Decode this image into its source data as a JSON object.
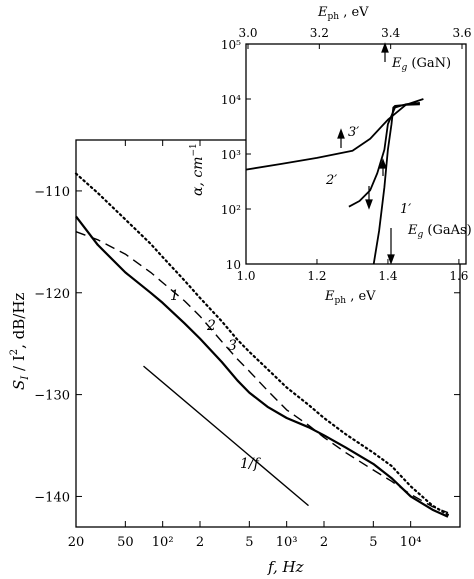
{
  "chart_data": [
    {
      "type": "line",
      "x_scale": "log",
      "xlabel": "f, Hz",
      "ylabel": "S_I / I^2, dB/Hz",
      "xlim": [
        20,
        25000
      ],
      "ylim": [
        -143,
        -105
      ],
      "x_ticks": [
        20,
        50,
        100,
        200,
        500,
        1000,
        2000,
        5000,
        10000
      ],
      "x_tick_labels": [
        "20",
        "50",
        "10²",
        "2",
        "5",
        "10³",
        "2",
        "5",
        "10⁴"
      ],
      "y_ticks": [
        -110,
        -120,
        -130,
        -140
      ],
      "y_tick_labels": [
        "−110",
        "−120",
        "−130",
        "−140"
      ],
      "series": [
        {
          "name": "1",
          "style": "solid-thick",
          "x": [
            20,
            30,
            50,
            80,
            100,
            150,
            200,
            300,
            400,
            500,
            700,
            1000,
            1500,
            2000,
            3000,
            5000,
            7000,
            10000,
            15000,
            20000
          ],
          "y": [
            -112.5,
            -115.3,
            -118.0,
            -120.0,
            -121.0,
            -123.0,
            -124.5,
            -126.8,
            -128.6,
            -129.8,
            -131.2,
            -132.3,
            -133.2,
            -134.0,
            -135.2,
            -136.8,
            -138.2,
            -140.0,
            -141.3,
            -142.0
          ]
        },
        {
          "name": "2",
          "style": "dashed",
          "x": [
            20,
            30,
            50,
            80,
            100,
            150,
            200,
            300,
            400,
            500,
            700,
            1000,
            1500,
            2000,
            3000,
            5000,
            7000,
            10000,
            15000,
            20000
          ],
          "y": [
            -114.0,
            -114.8,
            -116.2,
            -118.0,
            -119.0,
            -120.8,
            -122.3,
            -124.8,
            -126.5,
            -127.7,
            -129.6,
            -131.5,
            -133.0,
            -134.2,
            -135.7,
            -137.4,
            -138.5,
            -139.8,
            -141.0,
            -141.6
          ]
        },
        {
          "name": "3",
          "style": "dotted",
          "x": [
            20,
            30,
            50,
            80,
            100,
            150,
            200,
            300,
            400,
            500,
            700,
            1000,
            1500,
            2000,
            3000,
            5000,
            7000,
            10000,
            15000,
            20000
          ],
          "y": [
            -108.3,
            -110.2,
            -112.8,
            -115.2,
            -116.5,
            -118.8,
            -120.5,
            -122.8,
            -124.6,
            -125.8,
            -127.5,
            -129.3,
            -131.0,
            -132.3,
            -133.9,
            -135.7,
            -137.0,
            -139.0,
            -140.9,
            -141.8
          ]
        },
        {
          "name": "1/f",
          "style": "solid-thin",
          "x": [
            70,
            1500
          ],
          "y": [
            -127.2,
            -140.9
          ]
        }
      ],
      "annotations": [
        "1",
        "2",
        "3",
        "1/f"
      ]
    },
    {
      "type": "line",
      "y_scale": "log",
      "xlabel": "E_ph, eV",
      "top_xlabel": "E_ph, eV",
      "ylabel": "α, cm⁻¹",
      "xlim": [
        1.0,
        1.62
      ],
      "ylim": [
        10,
        100000
      ],
      "x_ticks": [
        1.0,
        1.2,
        1.4,
        1.6
      ],
      "x_tick_labels": [
        "1.0",
        "1.2",
        "1.4",
        "1.6"
      ],
      "top_x_ticks": [
        3.0,
        3.2,
        3.4,
        3.6
      ],
      "top_x_tick_labels": [
        "3.0",
        "3.2",
        "3.4",
        "3.6"
      ],
      "y_ticks": [
        10,
        100,
        1000,
        10000,
        100000
      ],
      "y_tick_labels": [
        "10",
        "10²",
        "10³",
        "10⁴",
        "10⁵"
      ],
      "series": [
        {
          "name": "3′",
          "x": [
            1.0,
            1.1,
            1.2,
            1.3,
            1.35,
            1.4,
            1.45,
            1.5
          ],
          "y": [
            520,
            660,
            850,
            1150,
            1900,
            4200,
            7800,
            10000
          ]
        },
        {
          "name": "2′",
          "x": [
            1.29,
            1.32,
            1.35,
            1.37,
            1.39,
            1.4,
            1.42,
            1.45,
            1.49
          ],
          "y": [
            110,
            140,
            220,
            450,
            1200,
            3500,
            7000,
            8000,
            8500
          ]
        },
        {
          "name": "1′",
          "x": [
            1.36,
            1.375,
            1.39,
            1.4,
            1.41,
            1.415,
            1.42,
            1.45,
            1.49
          ],
          "y": [
            10,
            40,
            250,
            1200,
            3500,
            7000,
            7500,
            7800,
            8000
          ]
        }
      ],
      "annotations": [
        "3′",
        "2′",
        "1′",
        "E_g (GaN)",
        "E_g (GaAs)"
      ]
    }
  ],
  "main": {
    "xlabel": "f, Hz",
    "ylabel_main": "S",
    "ylabel_sub": "I",
    "ylabel_div": " / I",
    "ylabel_sup": "2",
    "ylabel_unit": ", dB/Hz",
    "label_1": "1",
    "label_2": "2",
    "label_3": "3",
    "label_1f": "1/f"
  },
  "inset": {
    "bottom_xlabel_main": "E",
    "bottom_xlabel_sub": "ph",
    "bottom_xlabel_unit": " , eV",
    "top_xlabel_main": "E",
    "top_xlabel_sub": "ph",
    "top_xlabel_unit": " , eV",
    "ylabel_main": "α, cm",
    "ylabel_sup": "−1",
    "label_1p": "1′",
    "label_2p": "2′",
    "label_3p": "3′",
    "eg_gan_main": "E",
    "eg_gan_sub": "g",
    "eg_gan_rest": " (GaN)",
    "eg_gaas_main": "E",
    "eg_gaas_sub": "g",
    "eg_gaas_rest": " (GaAs)"
  }
}
